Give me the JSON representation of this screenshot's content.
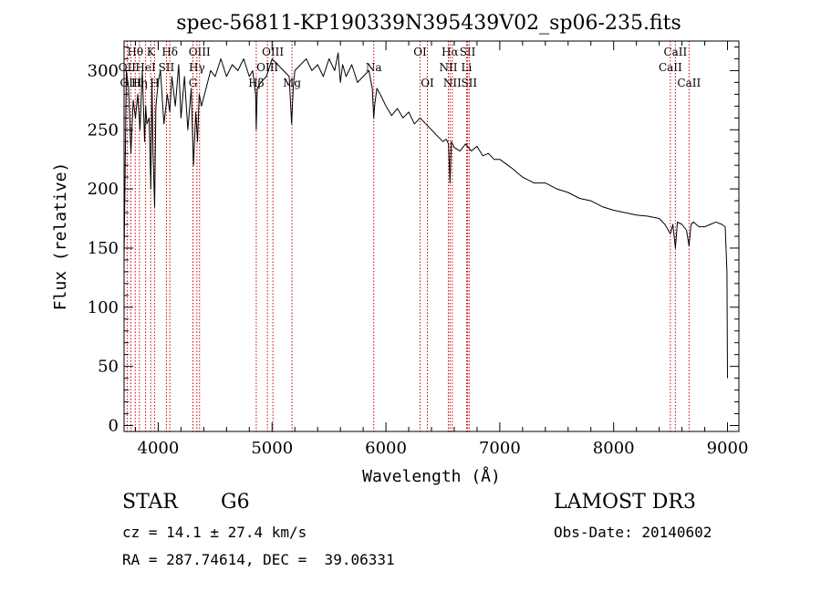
{
  "chart_data": {
    "type": "line",
    "title": "spec-56811-KP190339N395439V02_sp06-235.fits",
    "xlabel": "Wavelength (Å)",
    "ylabel": "Flux (relative)",
    "xlim": [
      3700,
      9100
    ],
    "ylim": [
      -5,
      325
    ],
    "xticks": [
      4000,
      5000,
      6000,
      7000,
      8000,
      9000
    ],
    "yticks": [
      0,
      50,
      100,
      150,
      200,
      250,
      300
    ],
    "series": [
      {
        "name": "flux",
        "color": "#000000",
        "x": [
          3700,
          3720,
          3740,
          3760,
          3780,
          3800,
          3820,
          3840,
          3860,
          3880,
          3890,
          3900,
          3920,
          3935,
          3945,
          3955,
          3968,
          3980,
          4000,
          4020,
          4050,
          4080,
          4101,
          4120,
          4150,
          4180,
          4200,
          4230,
          4260,
          4290,
          4310,
          4330,
          4345,
          4360,
          4380,
          4420,
          4460,
          4500,
          4550,
          4600,
          4650,
          4700,
          4750,
          4800,
          4830,
          4855,
          4861,
          4870,
          4900,
          4950,
          5000,
          5050,
          5100,
          5150,
          5172,
          5185,
          5200,
          5250,
          5300,
          5350,
          5400,
          5450,
          5500,
          5550,
          5580,
          5600,
          5620,
          5650,
          5700,
          5750,
          5800,
          5850,
          5880,
          5893,
          5900,
          5920,
          5950,
          6000,
          6050,
          6100,
          6150,
          6200,
          6250,
          6300,
          6350,
          6400,
          6450,
          6500,
          6530,
          6550,
          6563,
          6575,
          6600,
          6650,
          6700,
          6750,
          6800,
          6850,
          6900,
          6950,
          7000,
          7100,
          7200,
          7300,
          7400,
          7500,
          7600,
          7700,
          7800,
          7900,
          8000,
          8100,
          8200,
          8300,
          8400,
          8450,
          8498,
          8520,
          8542,
          8560,
          8600,
          8640,
          8662,
          8680,
          8700,
          8750,
          8800,
          8850,
          8900,
          8950,
          8980,
          8995,
          9000
        ],
        "y": [
          140,
          300,
          285,
          230,
          275,
          260,
          280,
          250,
          300,
          240,
          270,
          255,
          260,
          200,
          290,
          230,
          185,
          270,
          290,
          300,
          255,
          280,
          265,
          295,
          270,
          305,
          260,
          295,
          250,
          285,
          220,
          265,
          240,
          280,
          270,
          285,
          300,
          295,
          310,
          295,
          305,
          300,
          310,
          295,
          300,
          280,
          250,
          285,
          290,
          295,
          310,
          305,
          300,
          295,
          255,
          285,
          300,
          305,
          310,
          300,
          305,
          295,
          310,
          300,
          315,
          290,
          305,
          295,
          305,
          290,
          295,
          300,
          285,
          260,
          270,
          285,
          280,
          270,
          262,
          268,
          260,
          265,
          255,
          260,
          255,
          250,
          245,
          240,
          242,
          238,
          205,
          240,
          235,
          232,
          238,
          232,
          236,
          228,
          230,
          225,
          225,
          218,
          210,
          205,
          205,
          200,
          197,
          192,
          190,
          185,
          182,
          180,
          178,
          177,
          175,
          170,
          162,
          170,
          150,
          172,
          170,
          165,
          152,
          170,
          172,
          168,
          168,
          170,
          172,
          170,
          168,
          130,
          40
        ]
      }
    ],
    "spectral_lines": [
      {
        "label": "Hθ",
        "wavelength": 3798,
        "row": 1
      },
      {
        "label": "OII",
        "wavelength": 3727,
        "row": 2
      },
      {
        "label": "OIII",
        "wavelength": 3760,
        "row": 3
      },
      {
        "label": "Hη",
        "wavelength": 3835,
        "row": 3
      },
      {
        "label": "HeI",
        "wavelength": 3889,
        "row": 2
      },
      {
        "label": "K",
        "wavelength": 3934,
        "row": 1
      },
      {
        "label": "H",
        "wavelength": 3968,
        "row": 3
      },
      {
        "label": "Hδ",
        "wavelength": 4102,
        "row": 1
      },
      {
        "label": "SII",
        "wavelength": 4072,
        "row": 2
      },
      {
        "label": "OIII",
        "wavelength": 4363,
        "row": 1
      },
      {
        "label": "Hγ",
        "wavelength": 4340,
        "row": 2
      },
      {
        "label": "G",
        "wavelength": 4305,
        "row": 3
      },
      {
        "label": "Hβ",
        "wavelength": 4861,
        "row": 3
      },
      {
        "label": "OIII",
        "wavelength": 5007,
        "row": 1
      },
      {
        "label": "OIII",
        "wavelength": 4959,
        "row": 2
      },
      {
        "label": "Mg",
        "wavelength": 5175,
        "row": 3
      },
      {
        "label": "Na",
        "wavelength": 5893,
        "row": 2
      },
      {
        "label": "OI",
        "wavelength": 6300,
        "row": 1
      },
      {
        "label": "OI",
        "wavelength": 6364,
        "row": 3
      },
      {
        "label": "Hα",
        "wavelength": 6563,
        "row": 1
      },
      {
        "label": "NII",
        "wavelength": 6548,
        "row": 2
      },
      {
        "label": "NII",
        "wavelength": 6583,
        "row": 3
      },
      {
        "label": "SII",
        "wavelength": 6717,
        "row": 1
      },
      {
        "label": "Li",
        "wavelength": 6708,
        "row": 2
      },
      {
        "label": "SII",
        "wavelength": 6731,
        "row": 3
      },
      {
        "label": "CaII",
        "wavelength": 8542,
        "row": 1
      },
      {
        "label": "CaII",
        "wavelength": 8498,
        "row": 2
      },
      {
        "label": "CaII",
        "wavelength": 8662,
        "row": 3
      }
    ],
    "line_marker_color": "#cc0000"
  },
  "info": {
    "object_class": "STAR",
    "subclass": "G6",
    "survey": "LAMOST DR3",
    "redshift_text": "cz = 14.1 ± 27.4 km/s",
    "obs_date_text": "Obs-Date: 20140602",
    "coords_text": "RA = 287.74614, DEC =  39.06331"
  }
}
